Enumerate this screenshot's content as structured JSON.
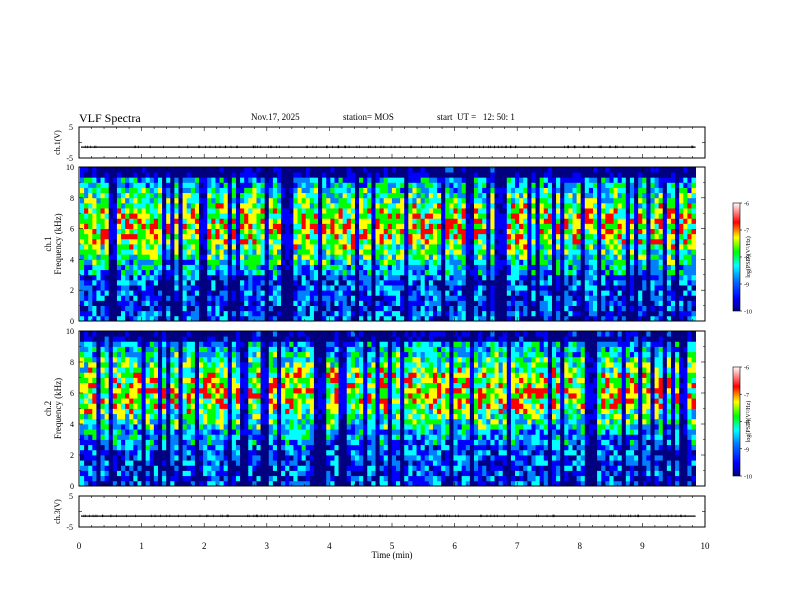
{
  "header": {
    "title": "VLF Spectra",
    "date": "Nov.17, 2025",
    "station": "station= MOS",
    "start": "start  UT =   12: 50: 1"
  },
  "chart_data": [
    {
      "type": "line",
      "id": "ch1-waveform",
      "ylabel": "ch.1(V)",
      "ylim": [
        -5,
        5
      ],
      "yticks": [
        "5",
        "-5"
      ],
      "xlim": [
        0,
        10
      ],
      "level": -1.5
    },
    {
      "type": "heatmap",
      "id": "ch1-spectrogram",
      "ylabel_line1": "ch.1",
      "ylabel_line2": "Frequency (kHz)",
      "ylim": [
        0,
        10
      ],
      "yticks": [
        "0",
        "2",
        "4",
        "6",
        "8",
        "10"
      ],
      "xlim": [
        0,
        10
      ],
      "data_end_min": 9.85,
      "colorbar": {
        "label": "log(PSD)(V²/Hz)",
        "range": [
          -10,
          -6
        ],
        "ticks": [
          "-6",
          "-7",
          "-8",
          "-9",
          "-10"
        ]
      }
    },
    {
      "type": "heatmap",
      "id": "ch2-spectrogram",
      "ylabel_line1": "ch.2",
      "ylabel_line2": "Frequency (kHz)",
      "ylim": [
        0,
        10
      ],
      "yticks": [
        "0",
        "2",
        "4",
        "6",
        "8",
        "10"
      ],
      "xlim": [
        0,
        10
      ],
      "data_end_min": 9.85,
      "colorbar": {
        "label": "log(PSD)(V²/Hz)",
        "range": [
          -10,
          -6
        ],
        "ticks": [
          "-6",
          "-7",
          "-8",
          "-9",
          "-10"
        ]
      }
    },
    {
      "type": "line",
      "id": "ch3-waveform",
      "ylabel": "ch.3(V)",
      "ylim": [
        -5,
        5
      ],
      "yticks": [
        "5",
        "-5"
      ],
      "xlim": [
        0,
        10
      ],
      "level": -1.5
    }
  ],
  "xaxis": {
    "label": "Time (min)",
    "ticks": [
      "0",
      "1",
      "2",
      "3",
      "4",
      "5",
      "6",
      "7",
      "8",
      "9",
      "10"
    ]
  },
  "colors": {
    "spectrogram_scale": [
      "#000080",
      "#0000ff",
      "#0080ff",
      "#00ffff",
      "#00ff00",
      "#ffff00",
      "#ff0000",
      "#ffffff"
    ]
  }
}
